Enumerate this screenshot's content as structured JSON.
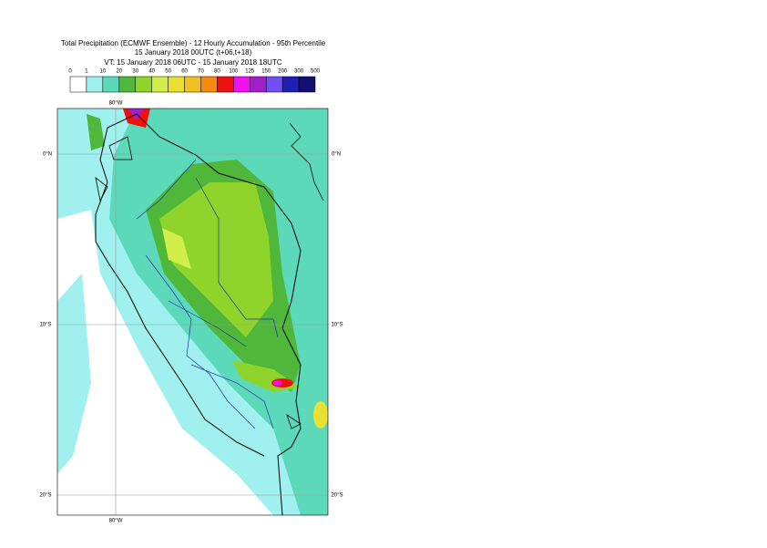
{
  "header": {
    "title_lines": [
      "Total Precipitation (ECMWF Ensemble) - 12 Hourly Accumulation - 95th Percentile",
      "15 January 2018 00UTC (t+06,t+18)",
      "VT: 15 January 2018 06UTC - 15 January 2018 18UTC"
    ]
  },
  "legend": {
    "labels": [
      "0",
      "1",
      "10",
      "20",
      "30",
      "40",
      "50",
      "60",
      "70",
      "80",
      "100",
      "125",
      "150",
      "200",
      "300",
      "500"
    ],
    "colors": [
      "#ffffff",
      "#9ff0ee",
      "#5cd9b8",
      "#4fb83a",
      "#8fd42a",
      "#d2ee4a",
      "#e8e032",
      "#f0c020",
      "#f58a10",
      "#f01010",
      "#f010f0",
      "#a020c8",
      "#7050f0",
      "#2020b0",
      "#101070"
    ]
  },
  "map": {
    "lon_labels": [
      "80°W",
      "80°W"
    ],
    "lat_labels": [
      "0°N",
      "10°S",
      "20°S",
      "0°N",
      "10°S",
      "20°S"
    ]
  }
}
